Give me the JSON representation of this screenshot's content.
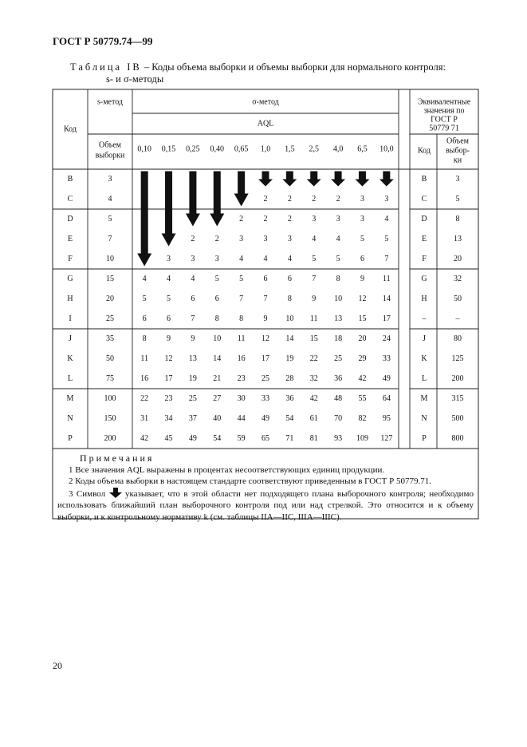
{
  "header": {
    "title": "ГОСТ Р 50779.74—99"
  },
  "caption": {
    "label": "Таблица IB",
    "text": "– Коды объема выборки и объемы выборки для нормального контроля:",
    "text2": "s- и σ-методы"
  },
  "table": {
    "code_header": "Код",
    "s_method": "s-метод",
    "sigma_method": "σ-метод",
    "aql_header": "AQL",
    "sample_size_header": [
      "Объем",
      "выборки"
    ],
    "aql": [
      "0,10",
      "0,15",
      "0,25",
      "0,40",
      "0,65",
      "1,0",
      "1,5",
      "2,5",
      "4,0",
      "6,5",
      "10,0"
    ],
    "rows": [
      [
        "B",
        3,
        null,
        null,
        null,
        null,
        null,
        null,
        null,
        null,
        null,
        null,
        null
      ],
      [
        "C",
        4,
        null,
        null,
        null,
        null,
        null,
        2,
        2,
        2,
        2,
        3,
        3
      ],
      [
        "D",
        5,
        null,
        null,
        null,
        null,
        2,
        2,
        2,
        3,
        3,
        3,
        4
      ],
      [
        "E",
        7,
        null,
        null,
        2,
        2,
        3,
        3,
        3,
        4,
        4,
        5,
        5
      ],
      [
        "F",
        10,
        null,
        3,
        3,
        3,
        4,
        4,
        4,
        5,
        5,
        6,
        7
      ],
      [
        "G",
        15,
        4,
        4,
        4,
        5,
        5,
        6,
        6,
        7,
        8,
        9,
        11
      ],
      [
        "H",
        20,
        5,
        5,
        6,
        6,
        7,
        7,
        8,
        9,
        10,
        12,
        14
      ],
      [
        "I",
        25,
        6,
        6,
        7,
        8,
        8,
        9,
        10,
        11,
        13,
        15,
        17
      ],
      [
        "J",
        35,
        8,
        9,
        9,
        10,
        11,
        12,
        14,
        15,
        18,
        20,
        24
      ],
      [
        "K",
        50,
        11,
        12,
        13,
        14,
        16,
        17,
        19,
        22,
        25,
        29,
        33
      ],
      [
        "L",
        75,
        16,
        17,
        19,
        21,
        23,
        25,
        28,
        32,
        36,
        42,
        49
      ],
      [
        "M",
        100,
        22,
        23,
        25,
        27,
        30,
        33,
        36,
        42,
        48,
        55,
        64
      ],
      [
        "N",
        150,
        31,
        34,
        37,
        40,
        44,
        49,
        54,
        61,
        70,
        82,
        95
      ],
      [
        "P",
        200,
        42,
        45,
        49,
        54,
        59,
        65,
        71,
        81,
        93,
        109,
        127
      ]
    ]
  },
  "equivalent": {
    "header": [
      "Эквивалентные",
      "значения по",
      "ГОСТ Р",
      "50779 71"
    ],
    "code_header": "Код",
    "size_header": [
      "Объем",
      "выбор-",
      "ки"
    ],
    "rows": [
      [
        "B",
        3
      ],
      [
        "C",
        5
      ],
      [
        "D",
        8
      ],
      [
        "E",
        13
      ],
      [
        "F",
        20
      ],
      [
        "G",
        32
      ],
      [
        "H",
        50
      ],
      [
        "–",
        "–"
      ],
      [
        "J",
        80
      ],
      [
        "K",
        125
      ],
      [
        "L",
        200
      ],
      [
        "M",
        315
      ],
      [
        "N",
        500
      ],
      [
        "P",
        800
      ]
    ]
  },
  "notes": {
    "title": "Примечания",
    "items": [
      "1 Все значения AQL выражены в процентах несоответствующих единиц продукции.",
      "2 Коды объема выборки в настоящем стандарте соответствуют приведенным в ГОСТ Р 50779.71."
    ],
    "symbol_text": "3 Символ",
    "symbol_rest": "указывает, что в этой области нет подходящего плана выборочного контроля; необходимо использовать ближайший план выборочного контроля под или над стрелкой. Это относится и к объему выборки, и к контрольному нормативу k (см. таблицы IIA—IIC, IIIA—IIIC)."
  },
  "page_number": "20"
}
